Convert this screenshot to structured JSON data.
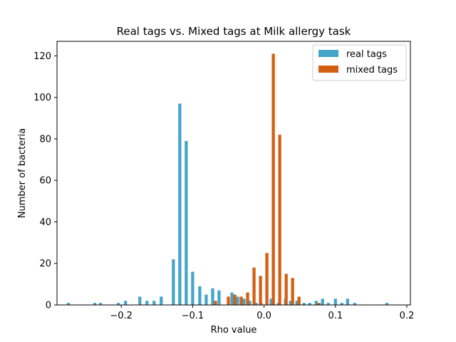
{
  "chart_data": {
    "type": "bar",
    "title": "Real tags vs. Mixed tags at Milk allergy task",
    "xlabel": "Rho value",
    "ylabel": "Number of bacteria",
    "xlim": [
      -0.29,
      0.205
    ],
    "ylim": [
      0,
      127
    ],
    "xticks": [
      -0.2,
      -0.1,
      0.0,
      0.1,
      0.2
    ],
    "xtick_labels": [
      "−0.2",
      "−0.1",
      "0.0",
      "0.1",
      "0.2"
    ],
    "yticks": [
      0,
      20,
      40,
      60,
      80,
      100,
      120
    ],
    "ytick_labels": [
      "0",
      "20",
      "40",
      "60",
      "80",
      "100",
      "120"
    ],
    "grid": false,
    "legend_position": "top-right",
    "series": [
      {
        "name": "real tags",
        "color": "#45a5c9",
        "x": [
          -0.274,
          -0.237,
          -0.229,
          -0.204,
          -0.194,
          -0.174,
          -0.164,
          -0.154,
          -0.144,
          -0.127,
          -0.118,
          -0.109,
          -0.1,
          -0.09,
          -0.081,
          -0.072,
          -0.063,
          -0.045,
          -0.037,
          -0.028,
          -0.02,
          -0.011,
          -0.004,
          0.01,
          0.02,
          0.03,
          0.037,
          0.046,
          0.056,
          0.064,
          0.073,
          0.082,
          0.09,
          0.1,
          0.109,
          0.117,
          0.127,
          0.172
        ],
        "values": [
          1,
          1,
          1,
          1,
          2,
          4,
          2,
          2,
          4,
          22,
          97,
          79,
          16,
          9,
          5,
          8,
          7,
          6,
          4,
          3,
          2,
          1,
          1,
          3,
          1,
          3,
          2,
          2,
          1,
          1,
          2,
          3,
          1,
          3,
          1,
          3,
          1,
          1
        ]
      },
      {
        "name": "mixed tags",
        "color": "#d45f12",
        "x": [
          -0.068,
          -0.05,
          -0.041,
          -0.032,
          -0.023,
          -0.014,
          -0.005,
          0.004,
          0.013,
          0.022,
          0.031,
          0.04,
          0.049,
          0.077
        ],
        "values": [
          2,
          4,
          5,
          4,
          6,
          18,
          14,
          25,
          121,
          82,
          15,
          13,
          4,
          1
        ]
      }
    ]
  }
}
